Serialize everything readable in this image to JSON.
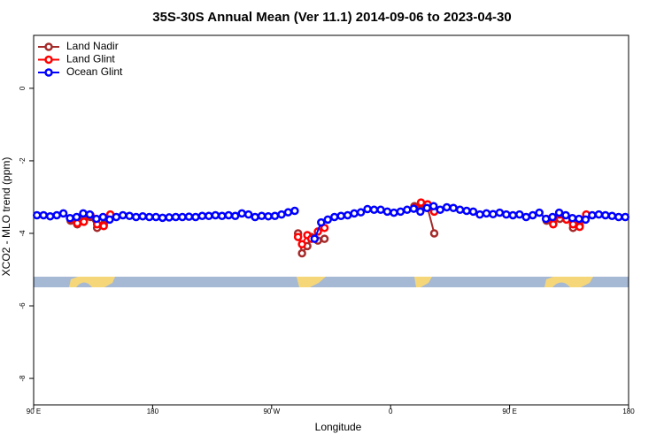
{
  "chart_data": {
    "type": "line",
    "title": "35S-30S Annual Mean (Ver 11.1)   2014-09-06 to 2023-04-30",
    "x_label": "Longitude",
    "y_label": "XCO2 - MLO trend (ppm)",
    "xlim": [
      90,
      540
    ],
    "ylim": [
      -8.73,
      1.46
    ],
    "xticks": [
      {
        "value": 90,
        "label": "90 E"
      },
      180,
      {
        "value": 270,
        "label": "90 W"
      },
      {
        "value": 360,
        "label": "0"
      },
      {
        "value": 450,
        "label": "90 E"
      },
      {
        "value": 540,
        "label": "180"
      }
    ],
    "yticks": [
      0,
      -2,
      -4,
      -6,
      -8
    ],
    "legend": "top-left",
    "series": [
      {
        "name": "Land Nadir",
        "color": "#a52a2a",
        "x": [
          118,
          123,
          128,
          133,
          138,
          143,
          148,
          null,
          290,
          293,
          297,
          300,
          305,
          310,
          null,
          378,
          383,
          388,
          393,
          null,
          478,
          483,
          488,
          493,
          498,
          503,
          508
        ],
        "values": [
          -3.65,
          -3.75,
          -3.62,
          -3.55,
          -3.85,
          -3.75,
          -3.5,
          null,
          -4.0,
          -4.55,
          -4.35,
          -4.1,
          -4.2,
          -4.15,
          null,
          -3.25,
          -3.2,
          -3.3,
          -4.0,
          null,
          -3.65,
          -3.72,
          -3.6,
          -3.55,
          -3.85,
          -3.78,
          -3.5
        ]
      },
      {
        "name": "Land Glint",
        "color": "#ff0000",
        "x": [
          118,
          123,
          128,
          133,
          138,
          143,
          148,
          null,
          290,
          293,
          297,
          300,
          305,
          310,
          null,
          378,
          383,
          388,
          393,
          null,
          478,
          483,
          488,
          493,
          498,
          503,
          508
        ],
        "values": [
          -3.6,
          -3.72,
          -3.68,
          -3.5,
          -3.75,
          -3.8,
          -3.48,
          null,
          -4.1,
          -4.3,
          -4.05,
          -4.15,
          -3.95,
          -3.85,
          null,
          -3.3,
          -3.15,
          -3.2,
          -3.4,
          null,
          -3.6,
          -3.75,
          -3.48,
          -3.62,
          -3.75,
          -3.82,
          -3.48
        ]
      },
      {
        "name": "Ocean Glint",
        "color": "#0000ff",
        "x": [
          92.5,
          97.5,
          102.5,
          107.5,
          112.5,
          117.5,
          122.5,
          127.5,
          132.5,
          137.5,
          142.5,
          147.5,
          152.5,
          157.5,
          162.5,
          167.5,
          172.5,
          177.5,
          182.5,
          187.5,
          192.5,
          197.5,
          202.5,
          207.5,
          212.5,
          217.5,
          222.5,
          227.5,
          232.5,
          237.5,
          242.5,
          247.5,
          252.5,
          257.5,
          262.5,
          267.5,
          272.5,
          277.5,
          282.5,
          287.5,
          null,
          302.5,
          307.5,
          312.5,
          317.5,
          322.5,
          327.5,
          332.5,
          337.5,
          342.5,
          347.5,
          352.5,
          357.5,
          362.5,
          367.5,
          372.5,
          377.5,
          382.5,
          387.5,
          392.5,
          397.5,
          402.5,
          407.5,
          412.5,
          417.5,
          422.5,
          427.5,
          432.5,
          437.5,
          442.5,
          447.5,
          452.5,
          457.5,
          462.5,
          467.5,
          472.5,
          477.5,
          482.5,
          487.5,
          492.5,
          497.5,
          502.5,
          507.5,
          512.5,
          517.5,
          522.5,
          527.5,
          532.5,
          537.5
        ],
        "values": [
          -3.5,
          -3.5,
          -3.53,
          -3.5,
          -3.45,
          -3.58,
          -3.55,
          -3.45,
          -3.48,
          -3.6,
          -3.55,
          -3.62,
          -3.55,
          -3.5,
          -3.52,
          -3.55,
          -3.53,
          -3.55,
          -3.55,
          -3.57,
          -3.56,
          -3.55,
          -3.55,
          -3.54,
          -3.55,
          -3.52,
          -3.52,
          -3.5,
          -3.52,
          -3.5,
          -3.52,
          -3.45,
          -3.48,
          -3.55,
          -3.52,
          -3.53,
          -3.52,
          -3.48,
          -3.42,
          -3.38,
          null,
          -4.15,
          -3.7,
          -3.62,
          -3.55,
          -3.52,
          -3.5,
          -3.45,
          -3.42,
          -3.33,
          -3.35,
          -3.35,
          -3.4,
          -3.43,
          -3.4,
          -3.35,
          -3.32,
          -3.4,
          -3.3,
          -3.25,
          -3.35,
          -3.28,
          -3.3,
          -3.35,
          -3.38,
          -3.4,
          -3.48,
          -3.45,
          -3.47,
          -3.43,
          -3.48,
          -3.5,
          -3.48,
          -3.55,
          -3.5,
          -3.43,
          -3.6,
          -3.55,
          -3.43,
          -3.5,
          -3.58,
          -3.6,
          -3.62,
          -3.5,
          -3.48,
          -3.5,
          -3.52,
          -3.55,
          -3.55
        ]
      }
    ]
  }
}
